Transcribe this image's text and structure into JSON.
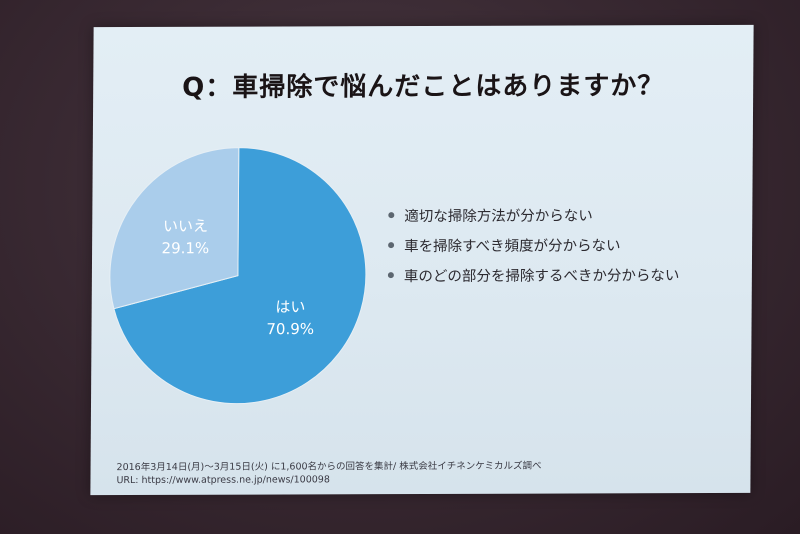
{
  "slide": {
    "title": "Q：車掃除で悩んだことはありますか？",
    "bullets": [
      "適切な掃除方法が分からない",
      "車を掃除すべき頻度が分からない",
      "車のどの部分を掃除するべきか分からない"
    ],
    "footnote_line1": "2016年3月14日(月)〜3月15日(火) に1,600名からの回答を集計/ 株式会社イチネンケミカルズ調べ",
    "footnote_line2": "URL: https://www.atpress.ne.jp/news/100098"
  },
  "colors": {
    "yes": "#3d9ed9",
    "no": "#aacdeb",
    "yes_label": "#ffffff",
    "no_label": "#ffffff"
  },
  "chart_data": {
    "type": "pie",
    "title": "Q：車掃除で悩んだことはありますか？",
    "slices": [
      {
        "label": "はい",
        "value": 70.9,
        "display": "70.9%"
      },
      {
        "label": "いいえ",
        "value": 29.1,
        "display": "29.1%"
      }
    ],
    "start": "12 o'clock",
    "direction": "clockwise",
    "legend": "none"
  }
}
